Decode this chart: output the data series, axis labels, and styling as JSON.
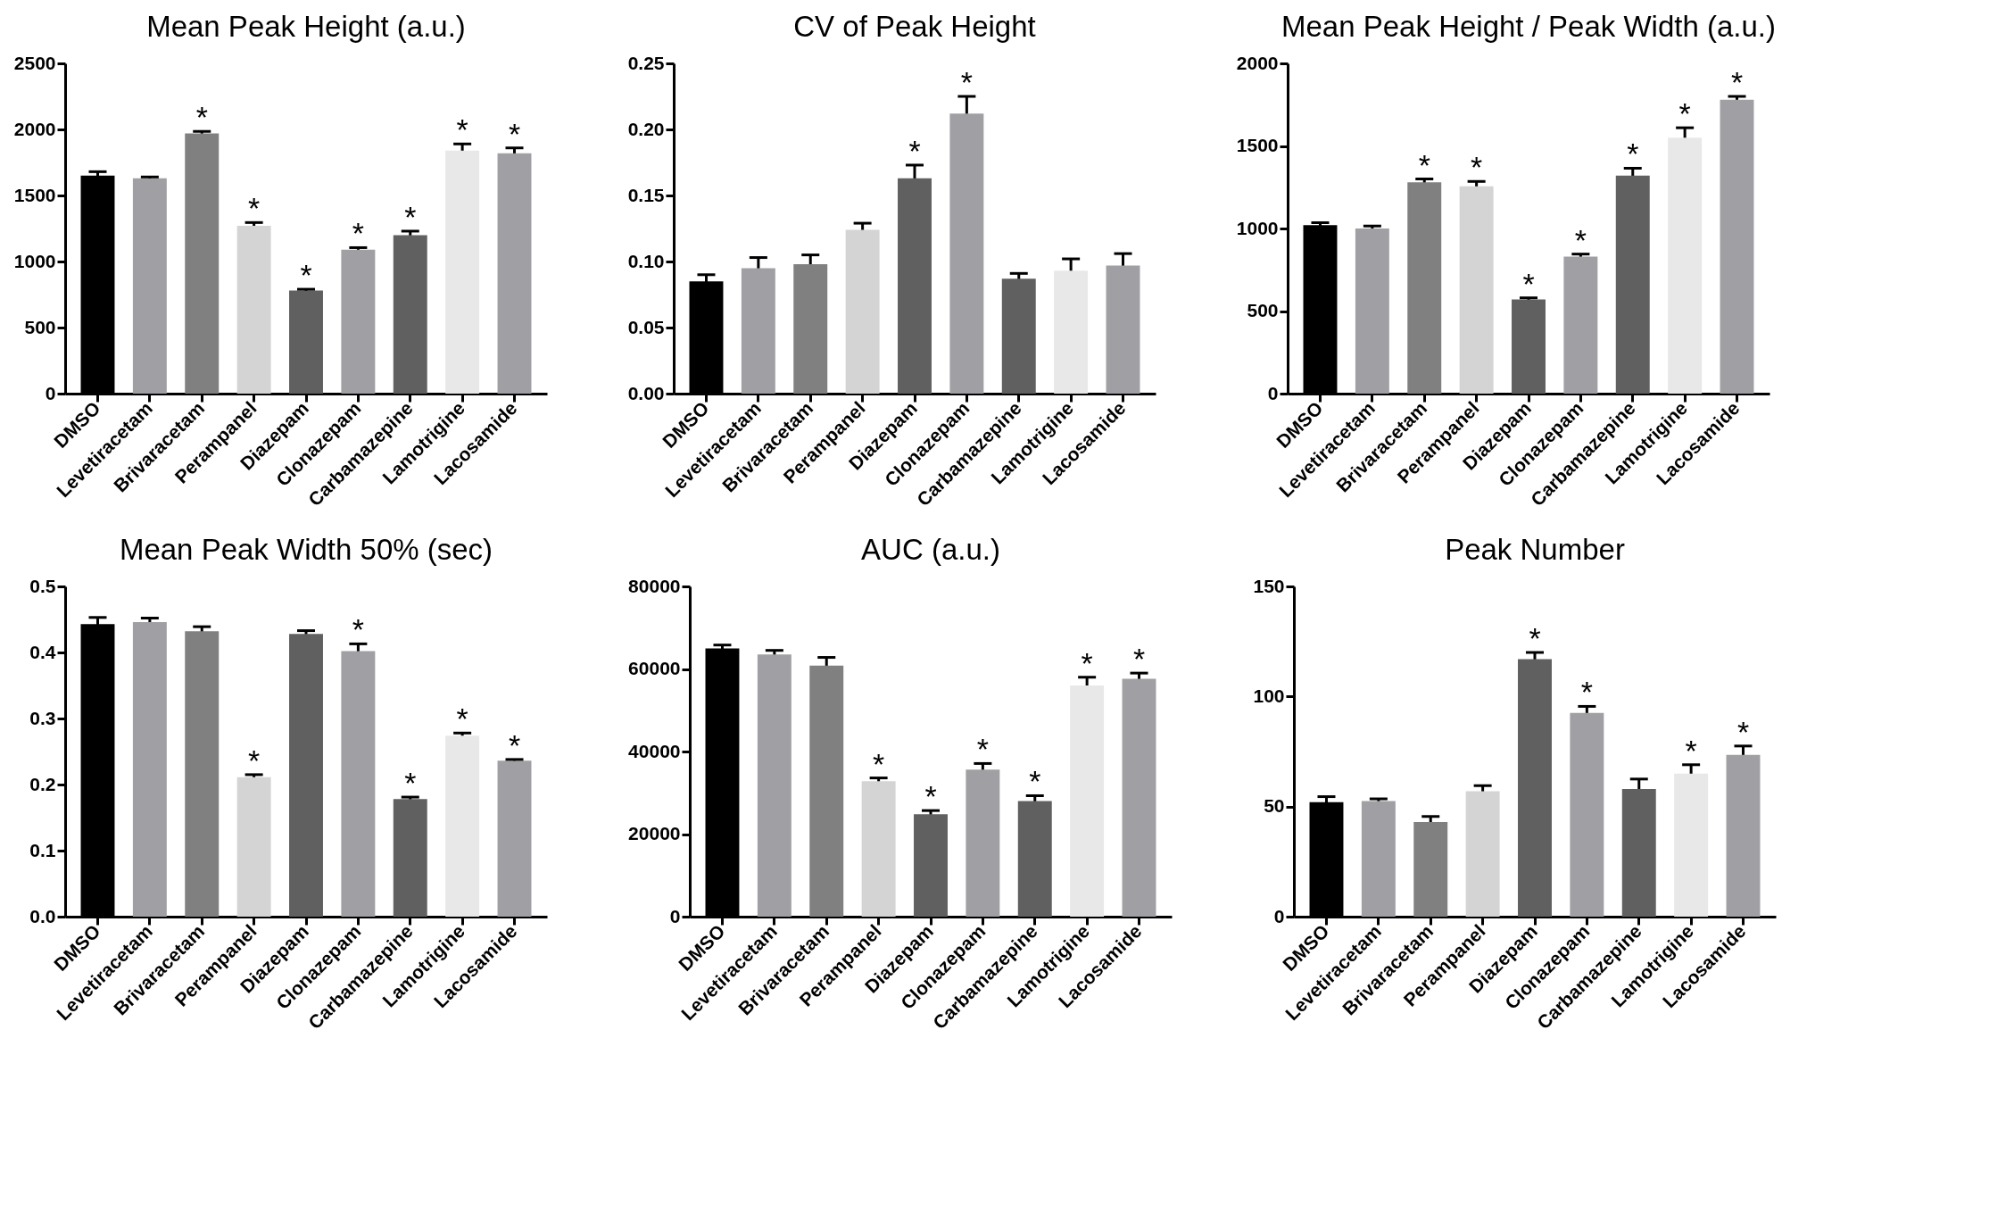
{
  "chart_data": [
    {
      "type": "bar",
      "title": "Mean Peak Height (a.u.)",
      "categories": [
        "DMSO",
        "Levetiracetam",
        "Brivaracetam",
        "Perampanel",
        "Diazepam",
        "Clonazepam",
        "Carbamazepine",
        "Lamotrigine",
        "Lacosamide"
      ],
      "values": [
        1650,
        1630,
        1970,
        1270,
        780,
        1090,
        1200,
        1840,
        1820
      ],
      "errors": [
        30,
        10,
        15,
        25,
        10,
        15,
        30,
        50,
        40
      ],
      "colors": [
        "#000000",
        "#a0a0a4",
        "#808080",
        "#d4d4d4",
        "#606060",
        "#a0a0a4",
        "#606060",
        "#e8e8e8",
        "#a0a0a4"
      ],
      "ylim": [
        0,
        2500
      ],
      "yticks": [
        0,
        500,
        1000,
        1500,
        2000,
        2500
      ],
      "value_labels": [
        null,
        null,
        "*",
        "*",
        "*",
        "*",
        "*",
        "*",
        "*"
      ]
    },
    {
      "type": "bar",
      "title": "CV of Peak Height",
      "categories": [
        "DMSO",
        "Levetiracetam",
        "Brivaracetam",
        "Perampanel",
        "Diazepam",
        "Clonazepam",
        "Carbamazepine",
        "Lamotrigine",
        "Lacosamide"
      ],
      "values": [
        0.085,
        0.095,
        0.098,
        0.124,
        0.163,
        0.212,
        0.087,
        0.093,
        0.097
      ],
      "errors": [
        0.005,
        0.008,
        0.007,
        0.005,
        0.01,
        0.013,
        0.004,
        0.009,
        0.009
      ],
      "colors": [
        "#000000",
        "#a0a0a4",
        "#808080",
        "#d4d4d4",
        "#606060",
        "#a0a0a4",
        "#606060",
        "#e8e8e8",
        "#a0a0a4"
      ],
      "ylim": [
        0,
        0.25
      ],
      "yticks": [
        {
          "value": 0,
          "label": "0.00"
        },
        0.05,
        {
          "value": 0.1,
          "label": "0.10"
        },
        0.15,
        {
          "value": 0.2,
          "label": "0.20"
        },
        0.25
      ],
      "value_labels": [
        null,
        null,
        null,
        null,
        "*",
        "*",
        null,
        null,
        null
      ]
    },
    {
      "type": "bar",
      "title": "Mean Peak Height / Peak Width  (a.u.)",
      "categories": [
        "DMSO",
        "Levetiracetam",
        "Brivaracetam",
        "Perampanel",
        "Diazepam",
        "Clonazepam",
        "Carbamazepine",
        "Lamotrigine",
        "Lacosamide"
      ],
      "values": [
        1020,
        1000,
        1280,
        1255,
        570,
        830,
        1320,
        1550,
        1780
      ],
      "errors": [
        15,
        15,
        20,
        30,
        10,
        15,
        45,
        60,
        20
      ],
      "colors": [
        "#000000",
        "#a0a0a4",
        "#808080",
        "#d4d4d4",
        "#606060",
        "#a0a0a4",
        "#606060",
        "#e8e8e8",
        "#a0a0a4"
      ],
      "ylim": [
        0,
        2000
      ],
      "yticks": [
        0,
        500,
        1000,
        1500,
        2000
      ],
      "value_labels": [
        null,
        null,
        "*",
        "*",
        "*",
        "*",
        "*",
        "*",
        "*"
      ]
    },
    {
      "type": "bar",
      "title": "Mean Peak Width 50% (sec)",
      "categories": [
        "DMSO",
        "Levetiracetam",
        "Brivaracetam",
        "Perampanel",
        "Diazepam",
        "Clonazepam",
        "Carbamazepine",
        "Lamotrigine",
        "Lacosamide"
      ],
      "values": [
        0.443,
        0.446,
        0.432,
        0.211,
        0.428,
        0.402,
        0.178,
        0.274,
        0.236
      ],
      "errors": [
        0.01,
        0.006,
        0.007,
        0.004,
        0.005,
        0.011,
        0.003,
        0.004,
        0.002
      ],
      "colors": [
        "#000000",
        "#a0a0a4",
        "#808080",
        "#d4d4d4",
        "#606060",
        "#a0a0a4",
        "#606060",
        "#e8e8e8",
        "#a0a0a4"
      ],
      "ylim": [
        0,
        0.5
      ],
      "yticks": [
        {
          "value": 0,
          "label": "0.0"
        },
        0.1,
        0.2,
        0.3,
        0.4,
        0.5
      ],
      "value_labels": [
        null,
        null,
        null,
        "*",
        null,
        "*",
        "*",
        "*",
        "*"
      ]
    },
    {
      "type": "bar",
      "title": "AUC (a.u.)",
      "categories": [
        "DMSO",
        "Levetiracetam",
        "Brivaracetam",
        "Perampanel",
        "Diazepam",
        "Clonazepam",
        "Carbamazepine",
        "Lamotrigine",
        "Lacosamide"
      ],
      "values": [
        65000,
        63500,
        60800,
        32800,
        24800,
        35600,
        28000,
        56000,
        57600
      ],
      "errors": [
        800,
        1000,
        2000,
        800,
        900,
        1500,
        1300,
        2000,
        1400
      ],
      "colors": [
        "#000000",
        "#a0a0a4",
        "#808080",
        "#d4d4d4",
        "#606060",
        "#a0a0a4",
        "#606060",
        "#e8e8e8",
        "#a0a0a4"
      ],
      "ylim": [
        0,
        80000
      ],
      "yticks": [
        0,
        20000,
        40000,
        60000,
        80000
      ],
      "value_labels": [
        null,
        null,
        null,
        "*",
        "*",
        "*",
        "*",
        "*",
        "*"
      ]
    },
    {
      "type": "bar",
      "title": "Peak Number",
      "categories": [
        "DMSO",
        "Levetiracetam",
        "Brivaracetam",
        "Perampanel",
        "Diazepam",
        "Clonazepam",
        "Carbamazepine",
        "Lamotrigine",
        "Lacosamide"
      ],
      "values": [
        52,
        52.5,
        43,
        57,
        117,
        92.5,
        58,
        65,
        73.5
      ],
      "errors": [
        2.5,
        1,
        2.5,
        2.5,
        3,
        3,
        4.5,
        4,
        4
      ],
      "colors": [
        "#000000",
        "#a0a0a4",
        "#808080",
        "#d4d4d4",
        "#606060",
        "#a0a0a4",
        "#606060",
        "#e8e8e8",
        "#a0a0a4"
      ],
      "ylim": [
        0,
        150
      ],
      "yticks": [
        0,
        50,
        100,
        150
      ],
      "value_labels": [
        null,
        null,
        null,
        null,
        "*",
        "*",
        null,
        "*",
        "*"
      ]
    }
  ]
}
